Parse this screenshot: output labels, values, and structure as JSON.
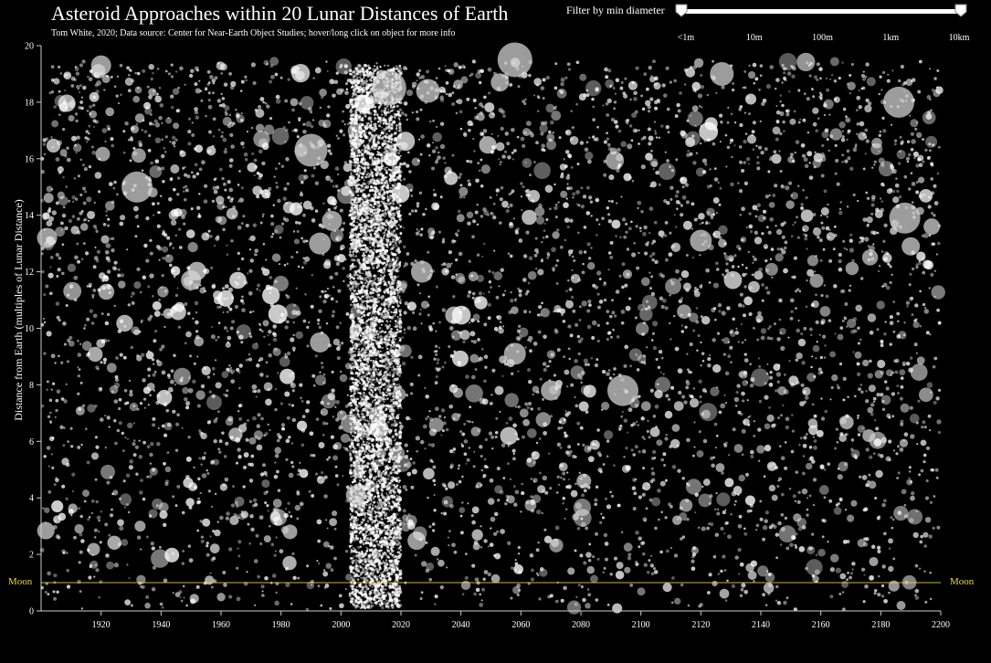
{
  "title": "Asteroid Approaches within 20 Lunar Distances of Earth",
  "subtitle": "Tom White, 2020; Data source: Center for Near-Earth Object Studies; hover/long click on object for more info",
  "filter": {
    "label": "Filter by min diameter",
    "ticks": [
      "<1m",
      "10m",
      "100m",
      "1km",
      "10km"
    ]
  },
  "colors": {
    "background": "#000000",
    "point": "#ffffff",
    "moon_line": "#e8d84a"
  },
  "chart_data": {
    "type": "scatter",
    "title": "Asteroid Approaches within 20 Lunar Distances of Earth",
    "xlabel": "",
    "ylabel": "Distance from Earth (multiples of Lunar Distance)",
    "xlim": [
      1900,
      2200
    ],
    "ylim": [
      0,
      20
    ],
    "x_ticks": [
      1920,
      1940,
      1960,
      1980,
      2000,
      2020,
      2040,
      2060,
      2080,
      2100,
      2120,
      2140,
      2160,
      2180,
      2200
    ],
    "y_ticks": [
      0,
      2,
      4,
      6,
      8,
      10,
      12,
      14,
      16,
      18,
      20
    ],
    "reference_lines": [
      {
        "label": "Moon",
        "y": 1
      }
    ],
    "highlighted_points": [
      {
        "x": 1920,
        "y": 19.3
      },
      {
        "x": 1932,
        "y": 15.0
      },
      {
        "x": 1902,
        "y": 13.2
      },
      {
        "x": 1990,
        "y": 16.3
      },
      {
        "x": 1997,
        "y": 13.8
      },
      {
        "x": 1993,
        "y": 13.0
      },
      {
        "x": 1993,
        "y": 9.5
      },
      {
        "x": 1950,
        "y": 11.7
      },
      {
        "x": 2005,
        "y": 4.1
      },
      {
        "x": 2016,
        "y": 18.5
      },
      {
        "x": 2029,
        "y": 18.4
      },
      {
        "x": 2027,
        "y": 12.0
      },
      {
        "x": 2058,
        "y": 19.5
      },
      {
        "x": 2053,
        "y": 18.7
      },
      {
        "x": 2058,
        "y": 9.1
      },
      {
        "x": 2070,
        "y": 7.8
      },
      {
        "x": 2081,
        "y": 4.6
      },
      {
        "x": 2094,
        "y": 7.8
      },
      {
        "x": 2127,
        "y": 19.0
      },
      {
        "x": 2120,
        "y": 13.1
      },
      {
        "x": 2186,
        "y": 18.0
      },
      {
        "x": 2188,
        "y": 13.9
      },
      {
        "x": 2190,
        "y": 12.9
      },
      {
        "x": 2176,
        "y": 6.2
      },
      {
        "x": 2197,
        "y": 13.6
      },
      {
        "x": 1983,
        "y": 2.8
      },
      {
        "x": 1933,
        "y": 3.0
      }
    ]
  }
}
